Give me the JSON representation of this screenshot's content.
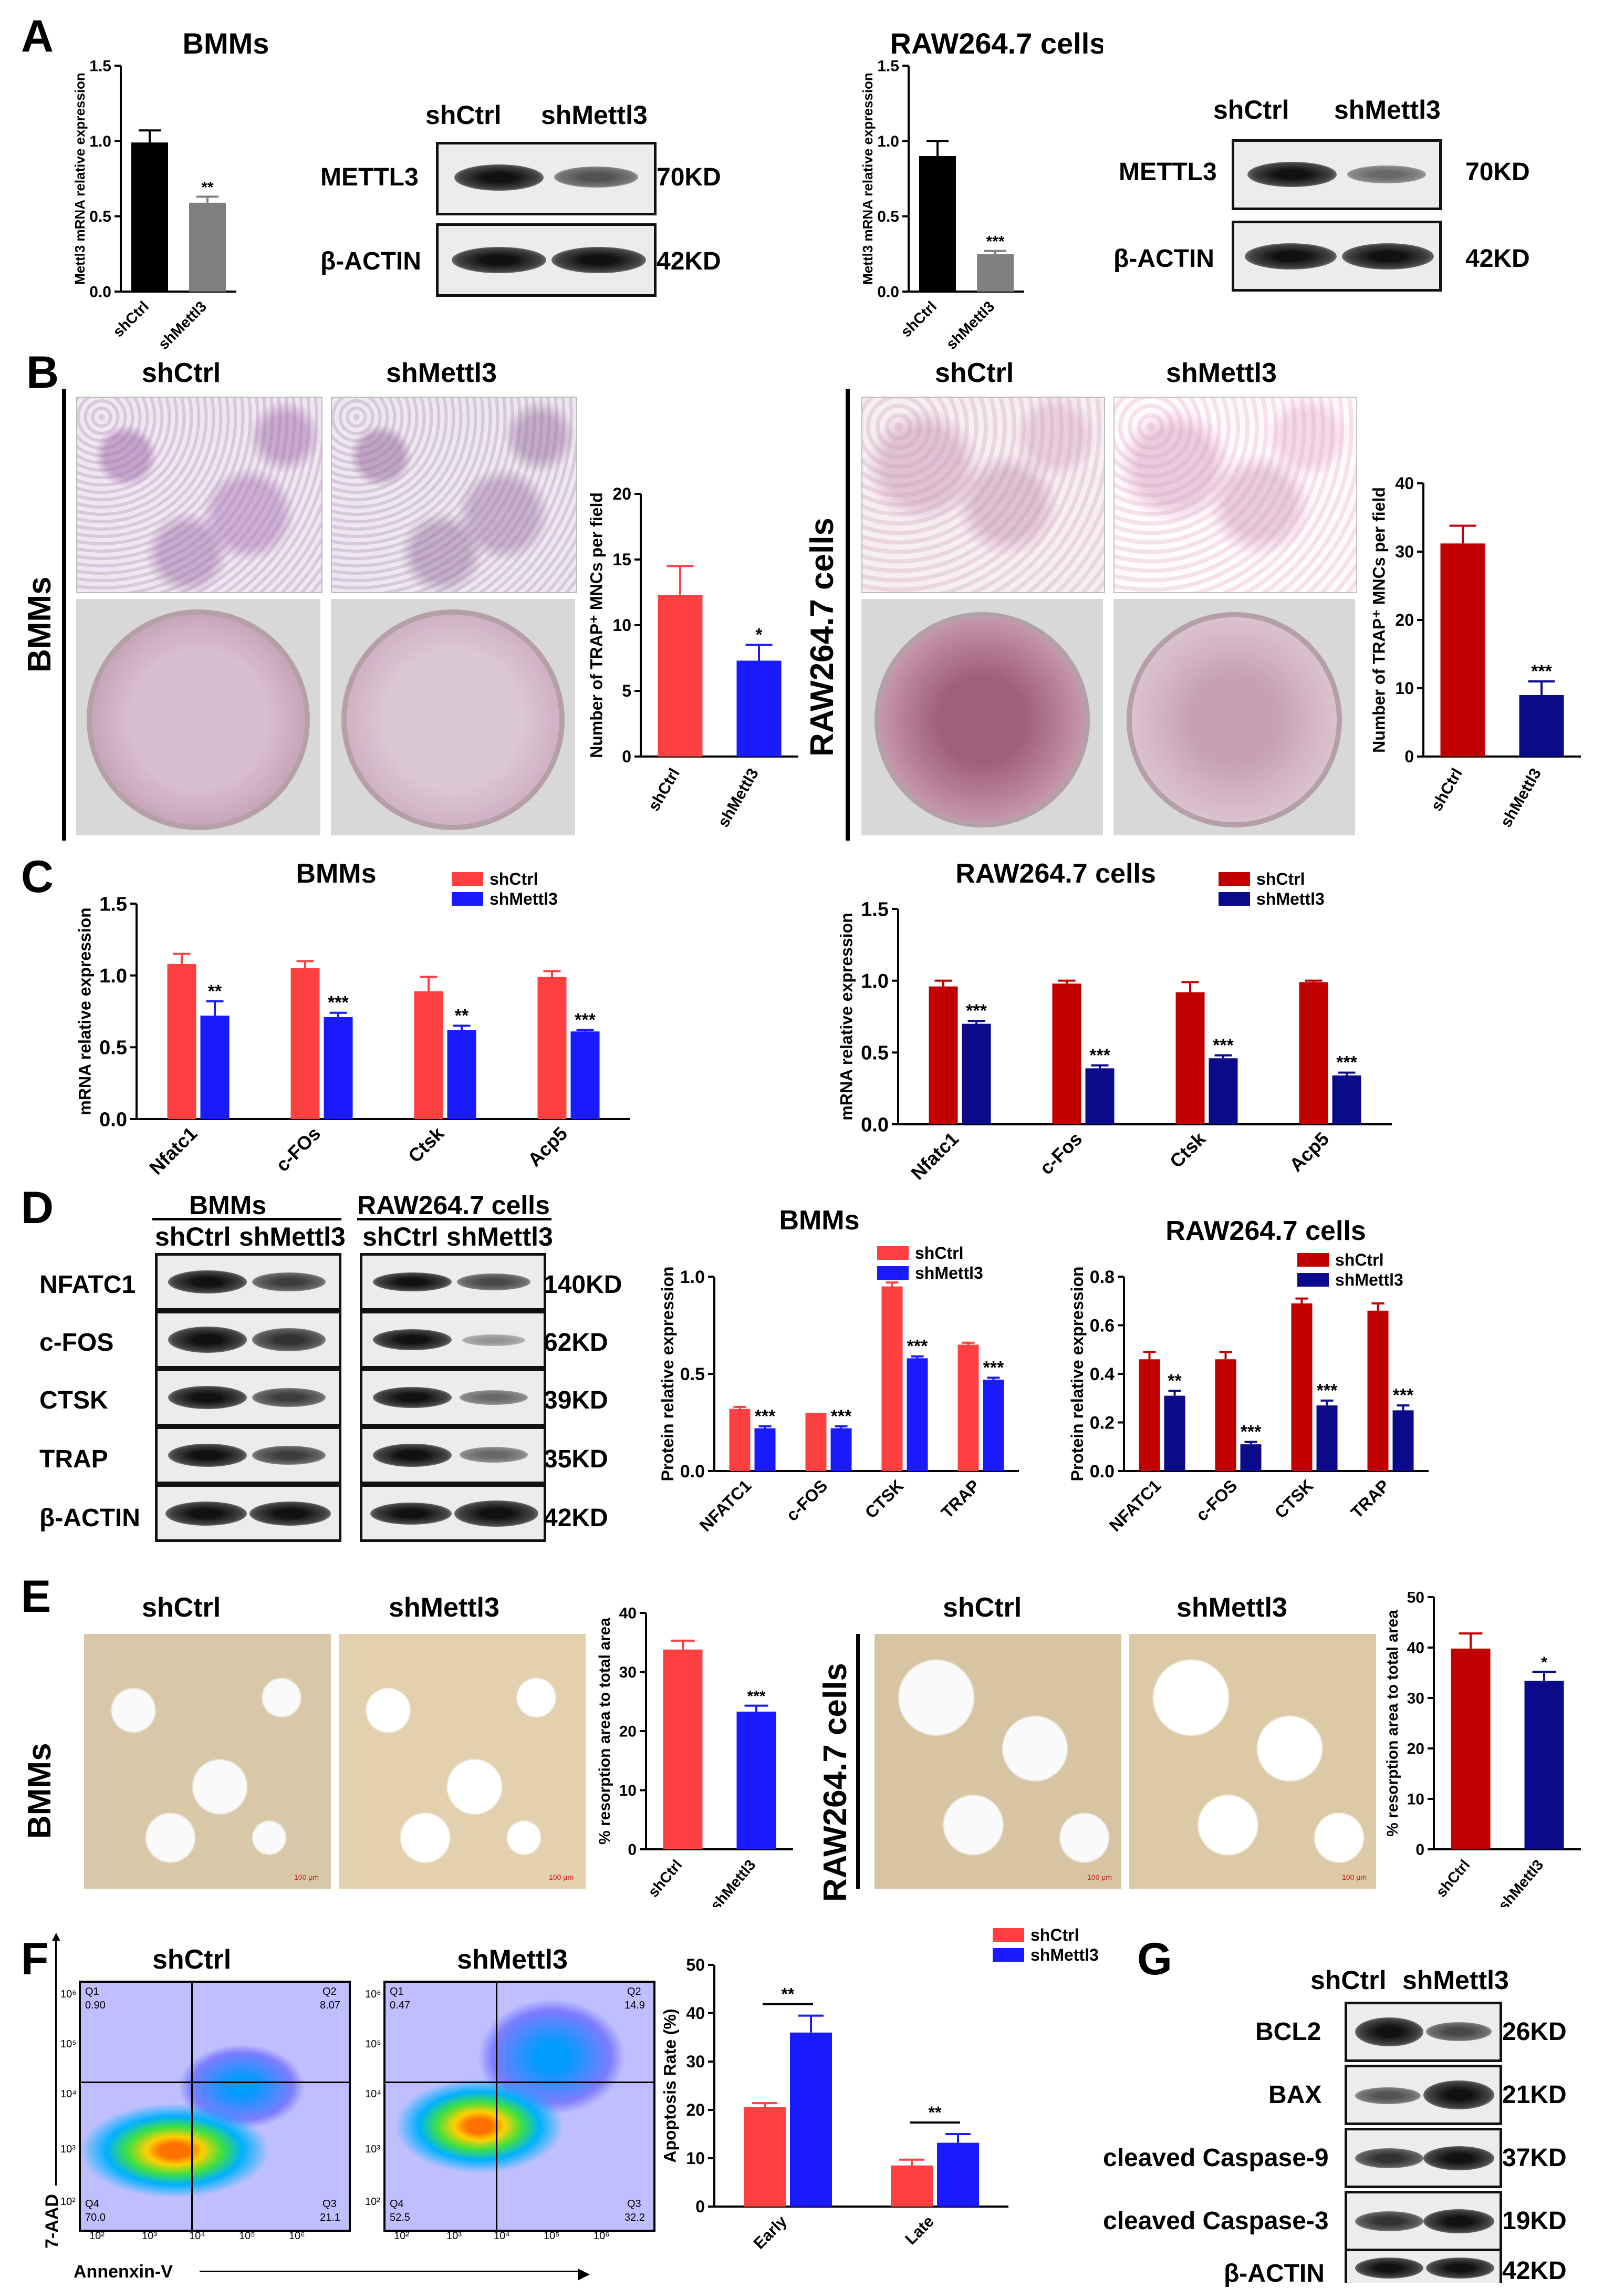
{
  "panels": {
    "A": "A",
    "B": "B",
    "C": "C",
    "D": "D",
    "E": "E",
    "F": "F",
    "G": "G"
  },
  "labels": {
    "shCtrl": "shCtrl",
    "shMettl3": "shMettl3",
    "bmms": "BMMs",
    "raw": "RAW264.7 cells"
  },
  "western_a": {
    "rows": [
      {
        "name": "METTL3",
        "size": "70KD"
      },
      {
        "name": "β-ACTIN",
        "size": "42KD"
      }
    ]
  },
  "western_d": {
    "rows": [
      {
        "name": "NFATC1",
        "size": "140KD"
      },
      {
        "name": "c-FOS",
        "size": "62KD"
      },
      {
        "name": "CTSK",
        "size": "39KD"
      },
      {
        "name": "TRAP",
        "size": "35KD"
      },
      {
        "name": "β-ACTIN",
        "size": "42KD"
      }
    ]
  },
  "western_g": {
    "rows": [
      {
        "name": "BCL2",
        "size": "26KD"
      },
      {
        "name": "BAX",
        "size": "21KD"
      },
      {
        "name": "cleaved Caspase-9",
        "size": "37KD"
      },
      {
        "name": "cleaved Caspase-3",
        "size": "19KD"
      },
      {
        "name": "β-ACTIN",
        "size": "42KD"
      }
    ]
  },
  "flow": {
    "xlabel": "Annenxin-V",
    "ylabel": "7-AAD",
    "shCtrl": {
      "Q1": "Q1",
      "Q1v": "0.90",
      "Q2": "Q2",
      "Q2v": "8.07",
      "Q3": "Q3",
      "Q3v": "21.1",
      "Q4": "Q4",
      "Q4v": "70.0"
    },
    "shMettl3": {
      "Q1": "Q1",
      "Q1v": "0.47",
      "Q2": "Q2",
      "Q2v": "14.9",
      "Q3": "Q3",
      "Q3v": "32.2",
      "Q4": "Q4",
      "Q4v": "52.5"
    },
    "ticks": [
      "10²",
      "10³",
      "10⁴",
      "10⁵",
      "10⁶"
    ]
  },
  "scale": "100 μm",
  "colors": {
    "bmm_ctrl": "#ff4040",
    "bmm_mettl3": "#1a1aff",
    "raw_ctrl": "#c00000",
    "raw_mettl3": "#0a0a8a",
    "a_ctrl": "#000000",
    "a_mettl3": "#808080"
  },
  "chart_data": [
    {
      "id": "A_bmm",
      "type": "bar",
      "title": "BMMs",
      "ylabel": "Mettl3 mRNA relative expression",
      "categories": [
        "shCtrl",
        "shMettl3"
      ],
      "values": [
        0.99,
        0.59
      ],
      "errors": [
        0.08,
        0.04
      ],
      "sig": [
        "",
        "**"
      ],
      "ylim": [
        0,
        1.5
      ],
      "yticks": [
        "0.0",
        "0.5",
        "1.0",
        "1.5"
      ]
    },
    {
      "id": "A_raw",
      "type": "bar",
      "title": "RAW264.7 cells",
      "ylabel": "Mettl3 mRNA relative expression",
      "categories": [
        "shCtrl",
        "shMettl3"
      ],
      "values": [
        0.9,
        0.25
      ],
      "errors": [
        0.1,
        0.02
      ],
      "sig": [
        "",
        "***"
      ],
      "ylim": [
        0,
        1.5
      ],
      "yticks": [
        "0.0",
        "0.5",
        "1.0",
        "1.5"
      ]
    },
    {
      "id": "B_bmm",
      "type": "bar",
      "ylabel": "Number of TRAP⁺ MNCs per field",
      "categories": [
        "shCtrl",
        "shMettl3"
      ],
      "values": [
        12.3,
        7.3
      ],
      "errors": [
        2.2,
        1.2
      ],
      "sig": [
        "",
        "*"
      ],
      "ylim": [
        0,
        20
      ],
      "yticks": [
        "0",
        "5",
        "10",
        "15",
        "20"
      ]
    },
    {
      "id": "B_raw",
      "type": "bar",
      "ylabel": "Number of TRAP⁺ MNCs per field",
      "categories": [
        "shCtrl",
        "shMettl3"
      ],
      "values": [
        31.2,
        9.0
      ],
      "errors": [
        2.6,
        2.0
      ],
      "sig": [
        "",
        "***"
      ],
      "ylim": [
        0,
        40
      ],
      "yticks": [
        "0",
        "10",
        "20",
        "30",
        "40"
      ]
    },
    {
      "id": "C_bmm",
      "type": "bar",
      "title": "BMMs",
      "ylabel": "mRNA relative expression",
      "categories": [
        "Nfatc1",
        "c-FOs",
        "Ctsk",
        "Acp5"
      ],
      "series": [
        {
          "name": "shCtrl",
          "values": [
            1.08,
            1.05,
            0.89,
            0.99
          ],
          "errors": [
            0.07,
            0.05,
            0.1,
            0.04
          ]
        },
        {
          "name": "shMettl3",
          "values": [
            0.72,
            0.71,
            0.62,
            0.61
          ],
          "errors": [
            0.1,
            0.03,
            0.03,
            0.01
          ],
          "sig": [
            "**",
            "***",
            "**",
            "***"
          ]
        }
      ],
      "ylim": [
        0,
        1.5
      ],
      "yticks": [
        "0.0",
        "0.5",
        "1.0",
        "1.5"
      ]
    },
    {
      "id": "C_raw",
      "type": "bar",
      "title": "RAW264.7 cells",
      "ylabel": "mRNA relative expression",
      "categories": [
        "Nfatc1",
        "c-Fos",
        "Ctsk",
        "Acp5"
      ],
      "series": [
        {
          "name": "shCtrl",
          "values": [
            0.96,
            0.98,
            0.92,
            0.99
          ],
          "errors": [
            0.04,
            0.02,
            0.07,
            0.01
          ]
        },
        {
          "name": "shMettl3",
          "values": [
            0.7,
            0.39,
            0.46,
            0.34
          ],
          "errors": [
            0.02,
            0.02,
            0.02,
            0.02
          ],
          "sig": [
            "***",
            "***",
            "***",
            "***"
          ]
        }
      ],
      "ylim": [
        0,
        1.5
      ],
      "yticks": [
        "0.0",
        "0.5",
        "1.0",
        "1.5"
      ]
    },
    {
      "id": "D_bmm",
      "type": "bar",
      "title": "BMMs",
      "ylabel": "Protein relative expression",
      "categories": [
        "NFATC1",
        "c-FOS",
        "CTSK",
        "TRAP"
      ],
      "series": [
        {
          "name": "shCtrl",
          "values": [
            0.32,
            0.3,
            0.95,
            0.65
          ],
          "errors": [
            0.01,
            0.0,
            0.02,
            0.01
          ]
        },
        {
          "name": "shMettl3",
          "values": [
            0.22,
            0.22,
            0.58,
            0.47
          ],
          "errors": [
            0.01,
            0.01,
            0.01,
            0.01
          ],
          "sig": [
            "***",
            "***",
            "***",
            "***"
          ]
        }
      ],
      "ylim": [
        0,
        1.0
      ],
      "yticks": [
        "0.0",
        "0.5",
        "1.0"
      ]
    },
    {
      "id": "D_raw",
      "type": "bar",
      "title": "RAW264.7 cells",
      "ylabel": "Protein relative expression",
      "categories": [
        "NFATC1",
        "c-FOS",
        "CTSK",
        "TRAP"
      ],
      "series": [
        {
          "name": "shCtrl",
          "values": [
            0.46,
            0.46,
            0.69,
            0.66
          ],
          "errors": [
            0.03,
            0.03,
            0.02,
            0.03
          ]
        },
        {
          "name": "shMettl3",
          "values": [
            0.31,
            0.11,
            0.27,
            0.25
          ],
          "errors": [
            0.02,
            0.01,
            0.02,
            0.02
          ],
          "sig": [
            "**",
            "***",
            "***",
            "***"
          ]
        }
      ],
      "ylim": [
        0,
        0.8
      ],
      "yticks": [
        "0.0",
        "0.2",
        "0.4",
        "0.6",
        "0.8"
      ]
    },
    {
      "id": "E_bmm",
      "type": "bar",
      "ylabel": "% resorption area to total area",
      "categories": [
        "shCtrl",
        "shMettl3"
      ],
      "values": [
        33.8,
        23.3
      ],
      "errors": [
        1.5,
        1.0
      ],
      "sig": [
        "",
        "***"
      ],
      "ylim": [
        0,
        40
      ],
      "yticks": [
        "0",
        "10",
        "20",
        "30",
        "40"
      ]
    },
    {
      "id": "E_raw",
      "type": "bar",
      "ylabel": "% resorption area to total area",
      "categories": [
        "shCtrl",
        "shMettl3"
      ],
      "values": [
        39.8,
        33.4
      ],
      "errors": [
        3.0,
        1.8
      ],
      "sig": [
        "",
        "*"
      ],
      "ylim": [
        0,
        50
      ],
      "yticks": [
        "0",
        "10",
        "20",
        "30",
        "40",
        "50"
      ]
    },
    {
      "id": "F_apop",
      "type": "bar",
      "ylabel": "Apoptosis Rate (%)",
      "categories": [
        "Early",
        "Late"
      ],
      "series": [
        {
          "name": "shCtrl",
          "values": [
            20.6,
            8.5
          ],
          "errors": [
            0.8,
            1.2
          ]
        },
        {
          "name": "shMettl3",
          "values": [
            36.0,
            13.2
          ],
          "errors": [
            3.5,
            1.8
          ]
        }
      ],
      "sig": [
        "**",
        "**"
      ],
      "ylim": [
        0,
        50
      ],
      "yticks": [
        "0",
        "10",
        "20",
        "30",
        "40",
        "50"
      ]
    }
  ]
}
